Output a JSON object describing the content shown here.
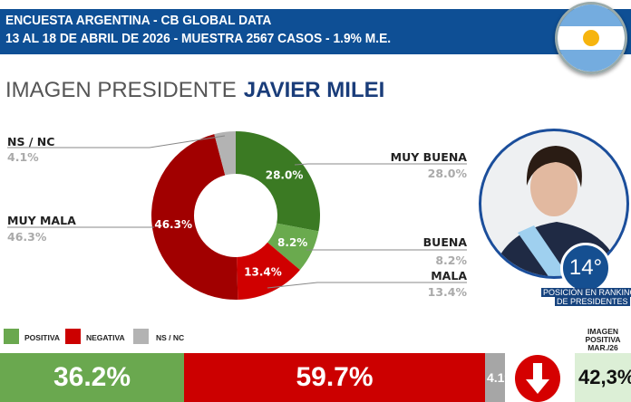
{
  "header": {
    "line1": "ENCUESTA ARGENTINA - CB GLOBAL DATA",
    "line2": "13 AL 18 DE ABRIL DE 2026 - MUESTRA 2567 CASOS - 1.9% M.E."
  },
  "title": {
    "prefix": "IMAGEN PRESIDENTE",
    "name": "JAVIER MILEI"
  },
  "chart_data": {
    "type": "pie",
    "donut": true,
    "slices": [
      {
        "label": "MUY BUENA",
        "value": 28.0,
        "display": "28.0%",
        "color": "#3b7a23"
      },
      {
        "label": "BUENA",
        "value": 8.2,
        "display": "8.2%",
        "color": "#6aaa4e"
      },
      {
        "label": "MALA",
        "value": 13.4,
        "display": "13.4%",
        "color": "#d00000"
      },
      {
        "label": "MUY MALA",
        "value": 46.3,
        "display": "46.3%",
        "color": "#a10000"
      },
      {
        "label": "NS / NC",
        "value": 4.1,
        "display": "4.1%",
        "color": "#b3b3b3"
      }
    ],
    "summary_bar": {
      "legend": [
        "POSITIVA",
        "NEGATIVA",
        "NS / NC"
      ],
      "segments": [
        {
          "label": "POSITIVA",
          "value": 36.2,
          "display": "36.2%",
          "color": "#6aa84f"
        },
        {
          "label": "NEGATIVA",
          "value": 59.7,
          "display": "59.7%",
          "color": "#cc0000"
        },
        {
          "label": "NS / NC",
          "value": 4.1,
          "display": "4.1%",
          "color": "#a6a6a6"
        }
      ]
    }
  },
  "ranking": {
    "position": "14°",
    "caption1": "POSICIÓN EN RANKING",
    "caption2": "DE PRESIDENTES"
  },
  "previous": {
    "label1": "IMAGEN",
    "label2": "POSITIVA",
    "label3": "MAR./26",
    "value": "42,3%",
    "trend": "down-arrow-icon"
  }
}
